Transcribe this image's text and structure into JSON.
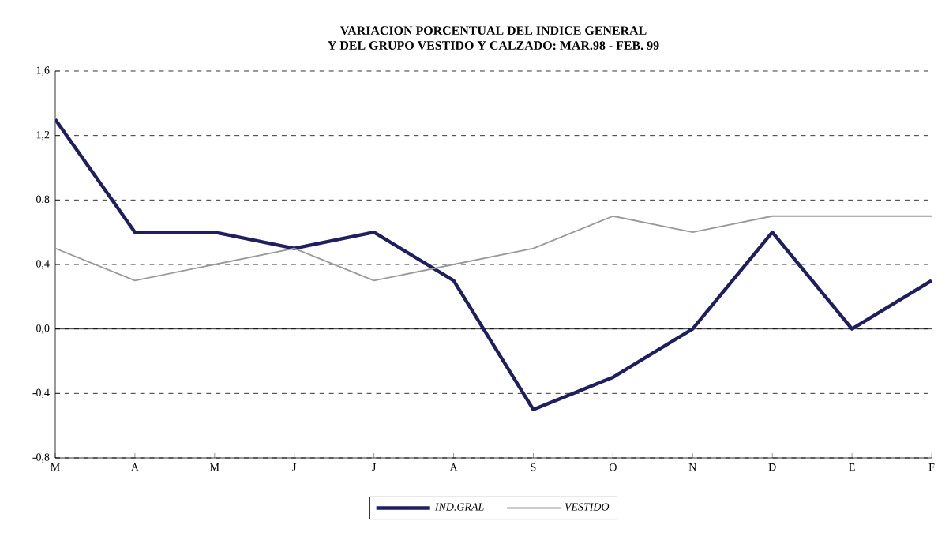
{
  "chart_data": {
    "type": "line",
    "title": "VARIACION PORCENTUAL DEL INDICE GENERAL",
    "subtitle": "Y DEL GRUPO VESTIDO Y CALZADO: MAR.98 - FEB. 99",
    "categories": [
      "M",
      "A",
      "M",
      "J",
      "J",
      "A",
      "S",
      "O",
      "N",
      "D",
      "E",
      "F"
    ],
    "series": [
      {
        "name": "IND.GRAL",
        "color": "#1f1f5f",
        "values": [
          1.3,
          0.6,
          0.6,
          0.5,
          0.6,
          0.3,
          -0.5,
          -0.3,
          0.0,
          0.6,
          0.0,
          0.3
        ]
      },
      {
        "name": "VESTIDO",
        "color": "#9a9a9a",
        "values": [
          0.5,
          0.3,
          0.4,
          0.5,
          0.3,
          0.4,
          0.5,
          0.7,
          0.6,
          0.7,
          0.7,
          0.7
        ]
      }
    ],
    "ylim": [
      -0.8,
      1.6
    ],
    "yticks": [
      {
        "value": -0.8,
        "label": "-0,8"
      },
      {
        "value": -0.4,
        "label": "-0,4"
      },
      {
        "value": 0,
        "label": "0,0"
      },
      {
        "value": 0.4,
        "label": "0,4"
      },
      {
        "value": 0.8,
        "label": "0,8"
      },
      {
        "value": 1.2,
        "label": "1,2"
      },
      {
        "value": 1.6,
        "label": "1,6"
      }
    ],
    "grid": "y",
    "legend": "bottom",
    "marker": "none",
    "line_style": "solid",
    "ref_lines": [
      {
        "axis": "y",
        "value": 0,
        "label": null,
        "color": "#000000"
      }
    ]
  }
}
